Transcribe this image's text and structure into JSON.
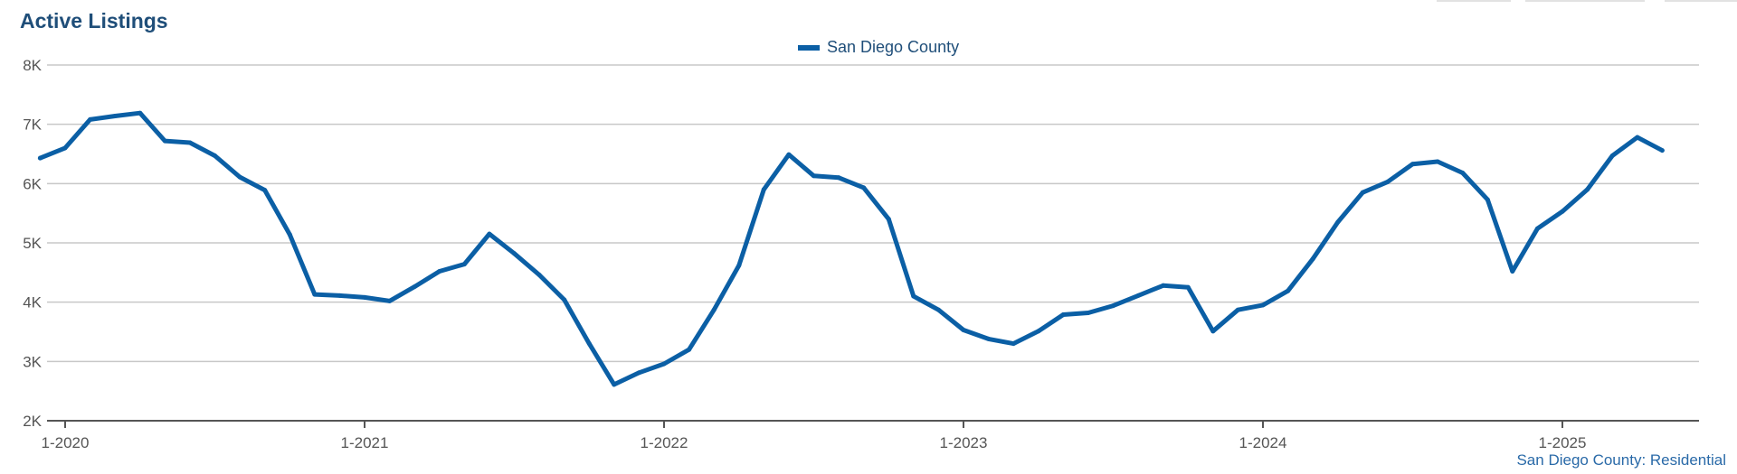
{
  "chart_data": {
    "type": "line",
    "title": "Active Listings",
    "source_label": "San Diego County: Residential",
    "legend_position": "top-center",
    "grid": true,
    "ylim": [
      2000,
      8000
    ],
    "y_ticks": [
      {
        "value": 2000,
        "label": "2K"
      },
      {
        "value": 3000,
        "label": "3K"
      },
      {
        "value": 4000,
        "label": "4K"
      },
      {
        "value": 5000,
        "label": "5K"
      },
      {
        "value": 6000,
        "label": "6K"
      },
      {
        "value": 7000,
        "label": "7K"
      },
      {
        "value": 8000,
        "label": "8K"
      }
    ],
    "x_ticks": [
      {
        "value": "2020-01",
        "label": "1-2020"
      },
      {
        "value": "2021-01",
        "label": "1-2021"
      },
      {
        "value": "2022-01",
        "label": "1-2022"
      },
      {
        "value": "2023-01",
        "label": "1-2023"
      },
      {
        "value": "2024-01",
        "label": "1-2024"
      },
      {
        "value": "2025-01",
        "label": "1-2025"
      }
    ],
    "x_start": "2020-01",
    "x_end": "2025-07",
    "series": [
      {
        "name": "San Diego County",
        "color": "#0b5fa5",
        "points": [
          [
            "2019-12",
            6430
          ],
          [
            "2020-01",
            6600
          ],
          [
            "2020-02",
            7080
          ],
          [
            "2020-03",
            7140
          ],
          [
            "2020-04",
            7190
          ],
          [
            "2020-05",
            6720
          ],
          [
            "2020-06",
            6690
          ],
          [
            "2020-07",
            6470
          ],
          [
            "2020-08",
            6110
          ],
          [
            "2020-09",
            5890
          ],
          [
            "2020-10",
            5140
          ],
          [
            "2020-11",
            4130
          ],
          [
            "2020-12",
            4110
          ],
          [
            "2021-01",
            4080
          ],
          [
            "2021-02",
            4020
          ],
          [
            "2021-03",
            4260
          ],
          [
            "2021-04",
            4520
          ],
          [
            "2021-05",
            4640
          ],
          [
            "2021-06",
            5150
          ],
          [
            "2021-07",
            4820
          ],
          [
            "2021-08",
            4460
          ],
          [
            "2021-09",
            4040
          ],
          [
            "2021-10",
            3300
          ],
          [
            "2021-11",
            2610
          ],
          [
            "2021-12",
            2810
          ],
          [
            "2022-01",
            2960
          ],
          [
            "2022-02",
            3200
          ],
          [
            "2022-03",
            3870
          ],
          [
            "2022-04",
            4620
          ],
          [
            "2022-05",
            5900
          ],
          [
            "2022-06",
            6490
          ],
          [
            "2022-07",
            6130
          ],
          [
            "2022-08",
            6100
          ],
          [
            "2022-09",
            5930
          ],
          [
            "2022-10",
            5400
          ],
          [
            "2022-11",
            4100
          ],
          [
            "2022-12",
            3870
          ],
          [
            "2023-01",
            3530
          ],
          [
            "2023-02",
            3380
          ],
          [
            "2023-03",
            3300
          ],
          [
            "2023-04",
            3510
          ],
          [
            "2023-05",
            3790
          ],
          [
            "2023-06",
            3820
          ],
          [
            "2023-07",
            3940
          ],
          [
            "2023-08",
            4110
          ],
          [
            "2023-09",
            4280
          ],
          [
            "2023-10",
            4250
          ],
          [
            "2023-11",
            3510
          ],
          [
            "2023-12",
            3870
          ],
          [
            "2024-01",
            3950
          ],
          [
            "2024-02",
            4190
          ],
          [
            "2024-03",
            4730
          ],
          [
            "2024-04",
            5350
          ],
          [
            "2024-05",
            5850
          ],
          [
            "2024-06",
            6030
          ],
          [
            "2024-07",
            6330
          ],
          [
            "2024-08",
            6370
          ],
          [
            "2024-09",
            6180
          ],
          [
            "2024-10",
            5730
          ],
          [
            "2024-11",
            4520
          ],
          [
            "2024-12",
            5240
          ],
          [
            "2025-01",
            5530
          ],
          [
            "2025-02",
            5900
          ],
          [
            "2025-03",
            6470
          ],
          [
            "2025-04",
            6780
          ],
          [
            "2025-05",
            6560
          ]
        ]
      }
    ]
  }
}
